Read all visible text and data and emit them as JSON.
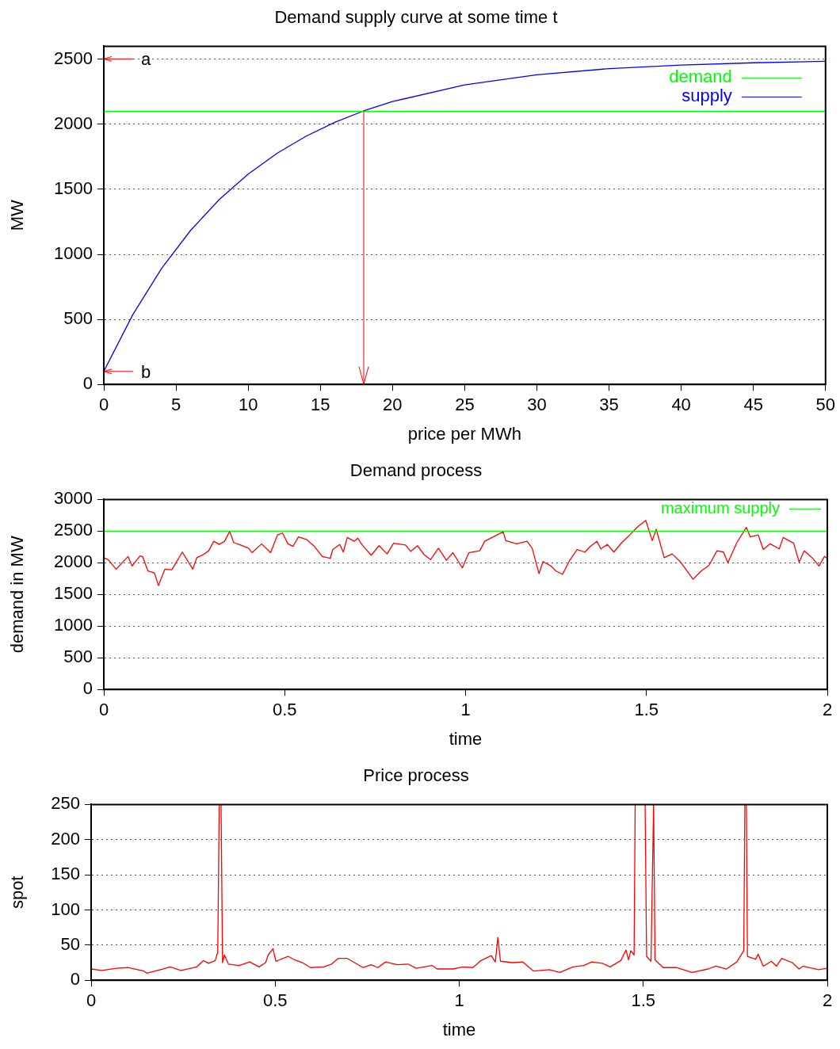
{
  "chart_data": [
    {
      "type": "line",
      "title": "Demand supply curve at some time t",
      "xlabel": "price per MWh",
      "ylabel": "MW",
      "xlim": [
        0,
        50
      ],
      "xticks": [
        0,
        5,
        10,
        15,
        20,
        25,
        30,
        35,
        40,
        45,
        50
      ],
      "ylim": [
        0,
        2600
      ],
      "yticks": [
        0,
        500,
        1000,
        1500,
        2000,
        2500
      ],
      "grid": "y",
      "legend": "top right",
      "series": [
        {
          "name": "demand",
          "color": "#00ff00",
          "x": [
            0,
            50
          ],
          "values": [
            2100,
            2100
          ]
        },
        {
          "name": "supply",
          "color": "#0000ff",
          "x": [
            0,
            2,
            4,
            6,
            8,
            10,
            12,
            14,
            16,
            18,
            20,
            25,
            30,
            35,
            40,
            45,
            50
          ],
          "values": [
            100,
            535,
            891,
            1183,
            1422,
            1617,
            1777,
            1908,
            2015,
            2103,
            2175,
            2303,
            2381,
            2428,
            2456,
            2473,
            2484
          ]
        }
      ],
      "ref_lines": [
        {
          "axis": "x",
          "value": 18,
          "color": "#ff0000"
        }
      ],
      "annotations": [
        "a",
        {
          "text": "b",
          "x": 0,
          "y": 100
        }
      ]
    },
    {
      "type": "line",
      "title": "Demand process",
      "xlabel": "time",
      "ylabel": "demand in MW",
      "xlim": [
        0,
        2
      ],
      "xticks": [
        0,
        0.5,
        1,
        1.5,
        2
      ],
      "ylim": [
        0,
        3000
      ],
      "yticks": [
        0,
        500,
        1000,
        1500,
        2000,
        2500,
        3000
      ],
      "grid": "y",
      "legend": "top right",
      "series": [
        {
          "name": "maximum supply",
          "color": "#00ff00",
          "x": [
            0,
            2
          ],
          "values": [
            2500,
            2500
          ]
        },
        {
          "color": "#ff0000",
          "x": [
            0,
            0.012,
            0.034,
            0.067,
            0.078,
            0.1,
            0.107,
            0.122,
            0.14,
            0.151,
            0.169,
            0.188,
            0.217,
            0.246,
            0.257,
            0.275,
            0.29,
            0.304,
            0.319,
            0.334,
            0.348,
            0.359,
            0.378,
            0.4,
            0.41,
            0.436,
            0.461,
            0.48,
            0.494,
            0.509,
            0.523,
            0.538,
            0.56,
            0.582,
            0.604,
            0.626,
            0.633,
            0.652,
            0.662,
            0.673,
            0.692,
            0.702,
            0.713,
            0.739,
            0.761,
            0.783,
            0.801,
            0.834,
            0.848,
            0.867,
            0.885,
            0.903,
            0.925,
            0.947,
            0.965,
            0.991,
            1.009,
            1.039,
            1.053,
            1.104,
            1.111,
            1.141,
            1.17,
            1.184,
            1.203,
            1.214,
            1.236,
            1.25,
            1.268,
            1.287,
            1.308,
            1.33,
            1.345,
            1.363,
            1.374,
            1.392,
            1.41,
            1.432,
            1.454,
            1.476,
            1.498,
            1.516,
            1.527,
            1.549,
            1.571,
            1.593,
            1.629,
            1.651,
            1.673,
            1.695,
            1.713,
            1.725,
            1.75,
            1.776,
            1.787,
            1.809,
            1.823,
            1.842,
            1.867,
            1.878,
            1.907,
            1.922,
            1.936,
            1.958,
            1.977,
            1.992,
            2
          ],
          "values": [
            2080,
            2050,
            1900,
            2100,
            1950,
            2110,
            2100,
            1870,
            1840,
            1640,
            1900,
            1890,
            2170,
            1900,
            2080,
            2130,
            2190,
            2340,
            2290,
            2340,
            2500,
            2320,
            2280,
            2230,
            2160,
            2300,
            2160,
            2440,
            2470,
            2300,
            2260,
            2410,
            2370,
            2260,
            2100,
            2070,
            2210,
            2290,
            2170,
            2400,
            2340,
            2390,
            2290,
            2120,
            2270,
            2140,
            2310,
            2280,
            2180,
            2270,
            2130,
            2050,
            2230,
            2040,
            2160,
            1920,
            2160,
            2190,
            2340,
            2490,
            2350,
            2300,
            2340,
            2230,
            1830,
            2020,
            1950,
            1870,
            1820,
            2030,
            2210,
            2170,
            2260,
            2340,
            2220,
            2290,
            2170,
            2320,
            2440,
            2570,
            2670,
            2350,
            2530,
            2080,
            2140,
            2020,
            1740,
            1870,
            1960,
            2190,
            2170,
            2000,
            2320,
            2560,
            2410,
            2440,
            2210,
            2300,
            2220,
            2400,
            2310,
            2010,
            2190,
            2080,
            1950,
            2100,
            2070
          ]
        }
      ]
    },
    {
      "type": "line",
      "title": "Price process",
      "xlabel": "time",
      "ylabel": "spot",
      "xlim": [
        0,
        2
      ],
      "xticks": [
        0,
        0.5,
        1,
        1.5,
        2
      ],
      "ylim": [
        0,
        250
      ],
      "yticks": [
        0,
        50,
        100,
        150,
        200,
        250
      ],
      "grid": "y",
      "series": [
        {
          "color": "#ff0000",
          "x": [
            0,
            0.029,
            0.068,
            0.1,
            0.144,
            0.151,
            0.194,
            0.215,
            0.244,
            0.287,
            0.305,
            0.319,
            0.337,
            0.344,
            0.348,
            0.353,
            0.357,
            0.362,
            0.373,
            0.402,
            0.431,
            0.456,
            0.474,
            0.481,
            0.494,
            0.502,
            0.535,
            0.553,
            0.574,
            0.596,
            0.632,
            0.653,
            0.671,
            0.696,
            0.739,
            0.761,
            0.779,
            0.8,
            0.832,
            0.861,
            0.883,
            0.926,
            0.94,
            0.983,
            1.01,
            1.037,
            1.059,
            1.087,
            1.098,
            1.105,
            1.112,
            1.145,
            1.173,
            1.202,
            1.245,
            1.273,
            1.309,
            1.338,
            1.36,
            1.389,
            1.41,
            1.439,
            1.453,
            1.46,
            1.466,
            1.475,
            1.478,
            1.505,
            1.509,
            1.521,
            1.528,
            1.532,
            1.554,
            1.59,
            1.633,
            1.676,
            1.697,
            1.726,
            1.754,
            1.773,
            1.776,
            1.78,
            1.783,
            1.805,
            1.812,
            1.826,
            1.848,
            1.862,
            1.876,
            1.905,
            1.923,
            1.934,
            1.977,
            1.998
          ],
          "values": [
            16,
            14,
            17,
            18,
            13,
            10,
            16,
            19,
            14,
            19,
            28,
            24,
            28,
            40,
            250,
            250,
            25,
            36,
            23,
            21,
            26,
            19,
            25,
            36,
            45,
            27,
            34,
            29,
            25,
            18,
            19,
            23,
            31,
            31,
            18,
            22,
            18,
            26,
            22,
            23,
            17,
            21,
            16,
            16,
            19,
            18,
            28,
            35,
            26,
            61,
            27,
            25,
            26,
            13,
            15,
            11,
            19,
            21,
            26,
            24,
            19,
            28,
            43,
            29,
            42,
            36,
            250,
            250,
            34,
            27,
            250,
            29,
            18,
            18,
            11,
            16,
            20,
            16,
            26,
            42,
            250,
            250,
            34,
            30,
            37,
            20,
            27,
            20,
            31,
            25,
            16,
            20,
            15,
            17
          ]
        }
      ]
    }
  ]
}
